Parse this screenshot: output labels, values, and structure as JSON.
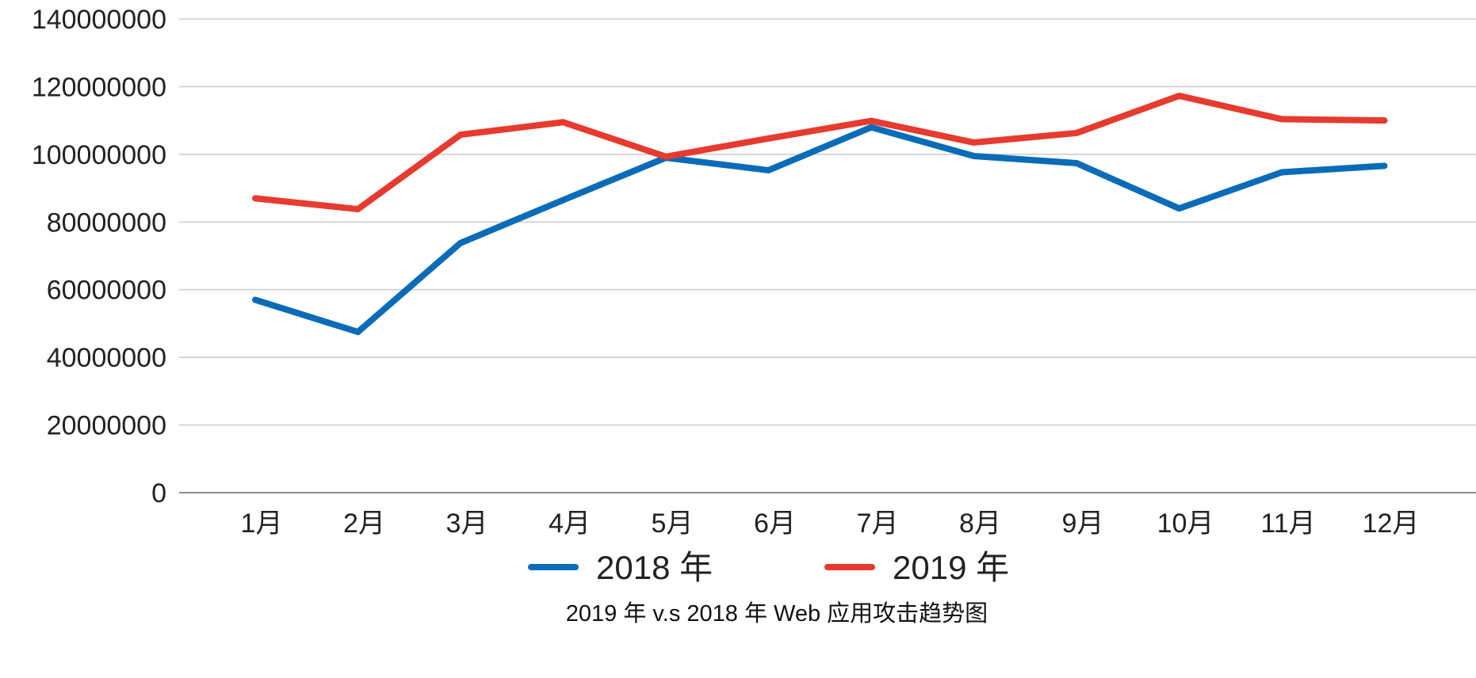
{
  "chart_data": {
    "type": "line",
    "title": "2019 年 v.s 2018 年 Web 应用攻击趋势图",
    "xlabel": "",
    "ylabel": "",
    "categories": [
      "1月",
      "2月",
      "3月",
      "4月",
      "5月",
      "6月",
      "7月",
      "8月",
      "9月",
      "10月",
      "11月",
      "12月"
    ],
    "ylim": [
      0,
      140000000
    ],
    "yticks": [
      0,
      20000000,
      40000000,
      60000000,
      80000000,
      100000000,
      120000000,
      140000000
    ],
    "ytick_labels": [
      "0",
      "20000000",
      "40000000",
      "60000000",
      "80000000",
      "100000000",
      "120000000",
      "140000000"
    ],
    "grid": true,
    "legend_position": "bottom",
    "series": [
      {
        "name": "2018 年",
        "color": "#0A6CB8",
        "values": [
          57000000,
          47500000,
          73800000,
          86500000,
          99000000,
          95300000,
          108000000,
          99500000,
          97400000,
          84000000,
          94700000,
          96600000
        ]
      },
      {
        "name": "2019 年",
        "color": "#E63B2E",
        "values": [
          87000000,
          83800000,
          105800000,
          109500000,
          99300000,
          104700000,
          109900000,
          103500000,
          106300000,
          117300000,
          110400000,
          110000000
        ]
      }
    ]
  }
}
